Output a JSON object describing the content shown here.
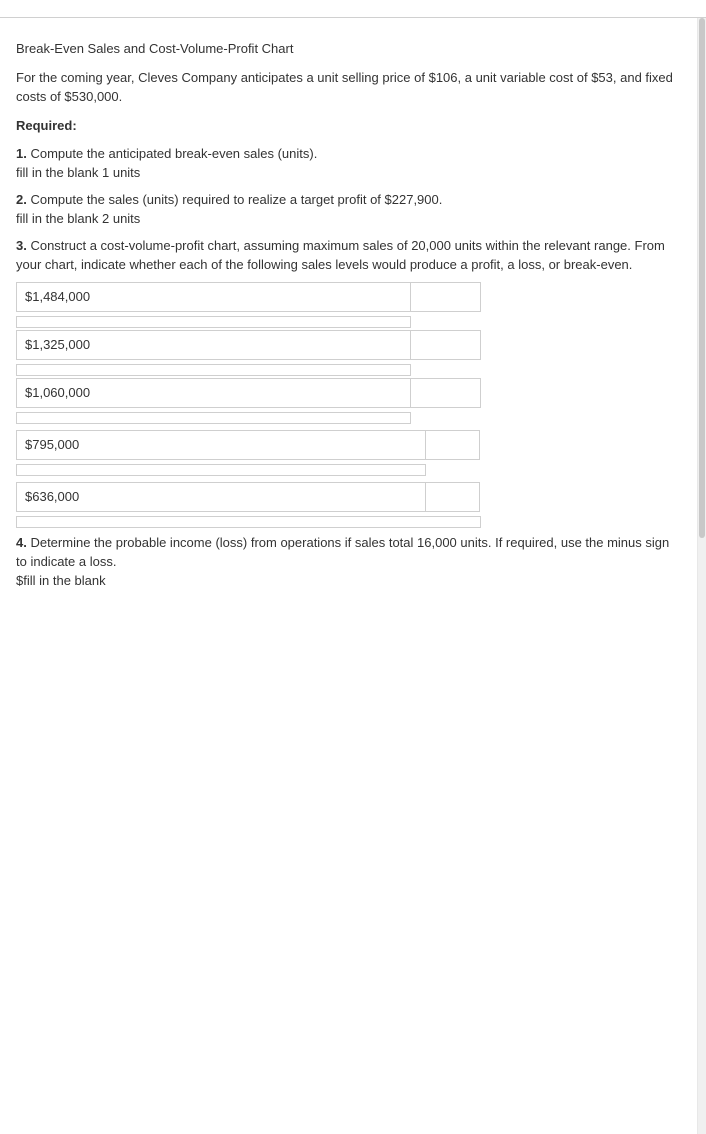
{
  "title": "Break-Even Sales and Cost-Volume-Profit Chart",
  "intro": "For the coming year, Cleves Company anticipates a unit selling price of $106, a unit variable cost of $53, and fixed costs of $530,000.",
  "required_label": "Required:",
  "q1": {
    "num": "1.",
    "text": " Compute the anticipated break-even sales (units).",
    "sub": "fill in the blank 1 units"
  },
  "q2": {
    "num": "2.",
    "text": " Compute the sales (units) required to realize a target profit of $227,900.",
    "sub": "fill in the blank 2 units"
  },
  "q3": {
    "num": "3.",
    "text": " Construct a cost-volume-profit chart, assuming maximum sales of 20,000 units within the relevant range. From your chart, indicate whether each of the following sales levels would produce a profit, a loss, or break-even."
  },
  "rows": [
    {
      "value": "$1,484,000"
    },
    {
      "value": "$1,325,000"
    },
    {
      "value": "$1,060,000"
    },
    {
      "value": "$795,000"
    },
    {
      "value": "$636,000"
    }
  ],
  "q4": {
    "num": "4.",
    "text": " Determine the probable income (loss) from operations if sales total 16,000 units. If required, use the minus sign to indicate a loss.",
    "sub": "$fill in the blank"
  }
}
